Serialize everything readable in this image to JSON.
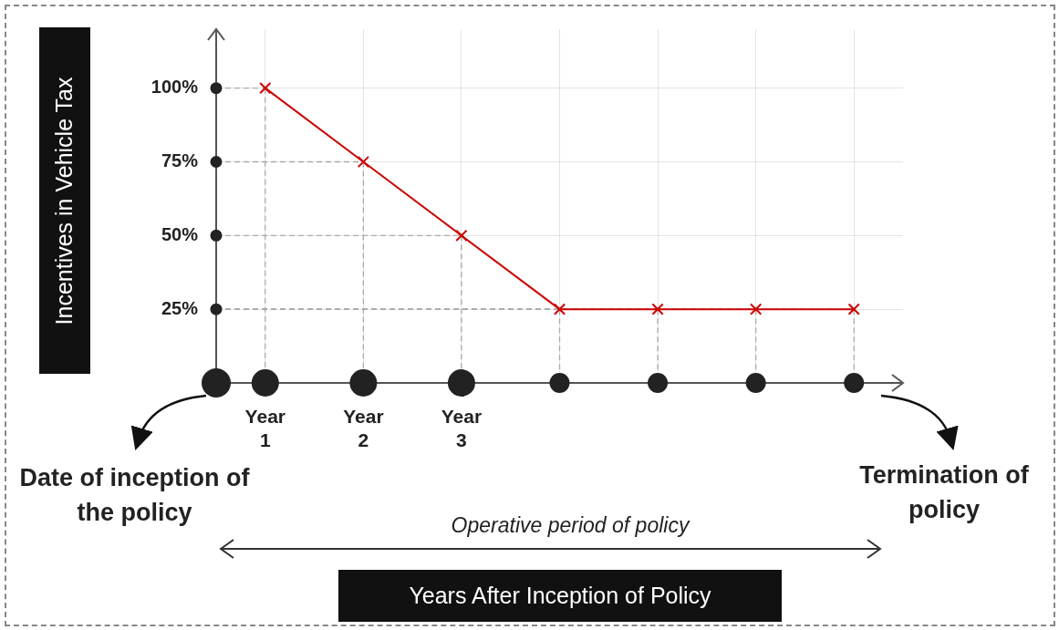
{
  "chart_data": {
    "type": "line",
    "ylabel": "Incentives in Vehicle Tax",
    "categories": [
      "Year 1",
      "Year 2",
      "Year 3",
      null,
      null,
      null,
      null
    ],
    "series": [
      {
        "color": "#cc0000",
        "values": [
          100,
          75,
          50,
          25,
          25,
          25,
          25
        ]
      }
    ],
    "ylim": [
      0,
      120
    ],
    "yticks": [
      {
        "value": 25,
        "label": "25%"
      },
      {
        "value": 50,
        "label": "50%"
      },
      {
        "value": 75,
        "label": "75%"
      },
      {
        "value": 100,
        "label": "100%"
      }
    ],
    "grid": true,
    "legend": false,
    "marker": "cross",
    "line_style": "solid",
    "annotations": [
      "Date of inception of the policy",
      "Termination of policy",
      "Operative period of policy",
      "Years After Inception of Policy"
    ]
  }
}
